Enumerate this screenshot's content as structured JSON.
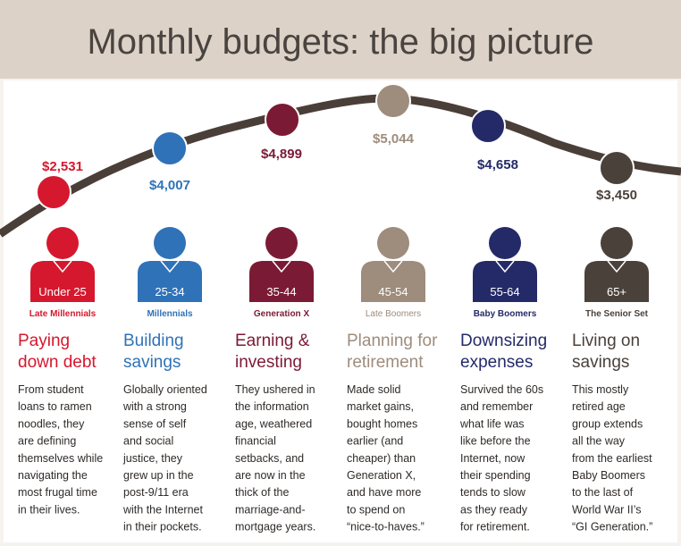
{
  "header": {
    "title": "Monthly budgets: the big picture"
  },
  "groups": [
    {
      "amount": "$2,531",
      "age": "Under 25",
      "generation": "Late Millennials",
      "color": "#d5182e",
      "heading": [
        "Paying",
        "down debt"
      ],
      "body": [
        "From student",
        "loans to ramen",
        "noodles, they",
        "are defining",
        "themselves while",
        "navigating the",
        "most frugal time",
        "in their lives."
      ]
    },
    {
      "amount": "$4,007",
      "age": "25-34",
      "generation": "Millennials",
      "color": "#2f72b8",
      "heading": [
        "Building",
        "savings"
      ],
      "body": [
        "Globally oriented",
        "with a strong",
        "sense of self",
        "and social",
        "justice, they",
        "grew up in the",
        "post-9/11 era",
        "with the Internet",
        "in their pockets."
      ]
    },
    {
      "amount": "$4,899",
      "age": "35-44",
      "generation": "Generation X",
      "color": "#7b1a35",
      "heading": [
        "Earning &",
        "investing"
      ],
      "body": [
        "They ushered in",
        "the information",
        "age, weathered",
        "financial",
        "setbacks, and",
        "are now in the",
        "thick of the",
        "marriage-and-",
        "mortgage years."
      ]
    },
    {
      "amount": "$5,044",
      "age": "45-54",
      "generation": "Late Boomers",
      "color": "#9e8c7c",
      "heading": [
        "Planning for",
        "retirement"
      ],
      "body": [
        "Made solid",
        "market gains,",
        "bought homes",
        "earlier (and",
        "cheaper) than",
        "Generation X,",
        "and have more",
        "to spend on",
        "“nice-to-haves.”"
      ]
    },
    {
      "amount": "$4,658",
      "age": "55-64",
      "generation": "Baby Boomers",
      "color": "#242a68",
      "heading": [
        "Downsizing",
        "expenses"
      ],
      "body": [
        "Survived the 60s",
        "and remember",
        "what life was",
        "like before the",
        "Internet, now",
        "their spending",
        "tends to slow",
        "as they ready",
        "for retirement."
      ]
    },
    {
      "amount": "$3,450",
      "age": "65+",
      "generation": "The Senior Set",
      "color": "#4b413b",
      "heading": [
        "Living on",
        "savings"
      ],
      "body": [
        "This mostly",
        "retired age",
        "group extends",
        "all the way",
        "from the earliest",
        "Baby Boomers",
        "to the last of",
        "World War II’s",
        "“GI Generation.”"
      ]
    }
  ]
}
